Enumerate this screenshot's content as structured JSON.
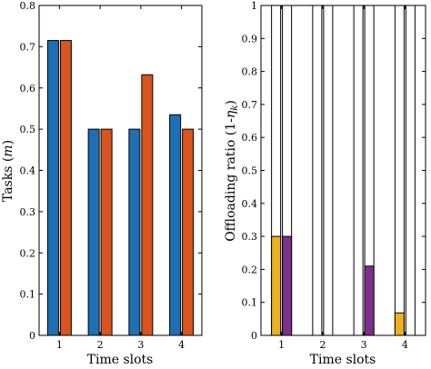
{
  "chart_data": [
    {
      "type": "bar",
      "xlabel": "Time slots",
      "ylabel_main": "Tasks (",
      "ylabel_italic": "m",
      "ylabel_end": ")",
      "categories": [
        "1",
        "2",
        "3",
        "4"
      ],
      "ylim": [
        0,
        0.8
      ],
      "yticks": [
        "0",
        "0.1",
        "0.2",
        "0.3",
        "0.4",
        "0.5",
        "0.6",
        "0.7",
        "0.8"
      ],
      "grid": false,
      "series": [
        {
          "color": "#1f6fb5",
          "values": [
            0.715,
            0.5,
            0.5,
            0.535
          ]
        },
        {
          "color": "#d9541e",
          "values": [
            0.715,
            0.5,
            0.632,
            0.5
          ]
        }
      ]
    },
    {
      "type": "bar",
      "xlabel": "Time slots",
      "ylabel_main": "Offloading ratio (1-",
      "ylabel_italic": "η",
      "ylabel_sub": "k",
      "ylabel_end": ")",
      "categories": [
        "1",
        "2",
        "3",
        "4"
      ],
      "ylim": [
        0,
        1
      ],
      "yticks": [
        "0",
        "0.1",
        "0.2",
        "0.3",
        "0.4",
        "0.5",
        "0.6",
        "0.7",
        "0.8",
        "0.9",
        "1"
      ],
      "grid": false,
      "series": [
        {
          "color": "#edb120",
          "values": [
            0.3,
            0,
            0,
            0.068
          ]
        },
        {
          "color": "#7e2f8e",
          "values": [
            0.3,
            0,
            0.21,
            0
          ]
        }
      ]
    }
  ]
}
